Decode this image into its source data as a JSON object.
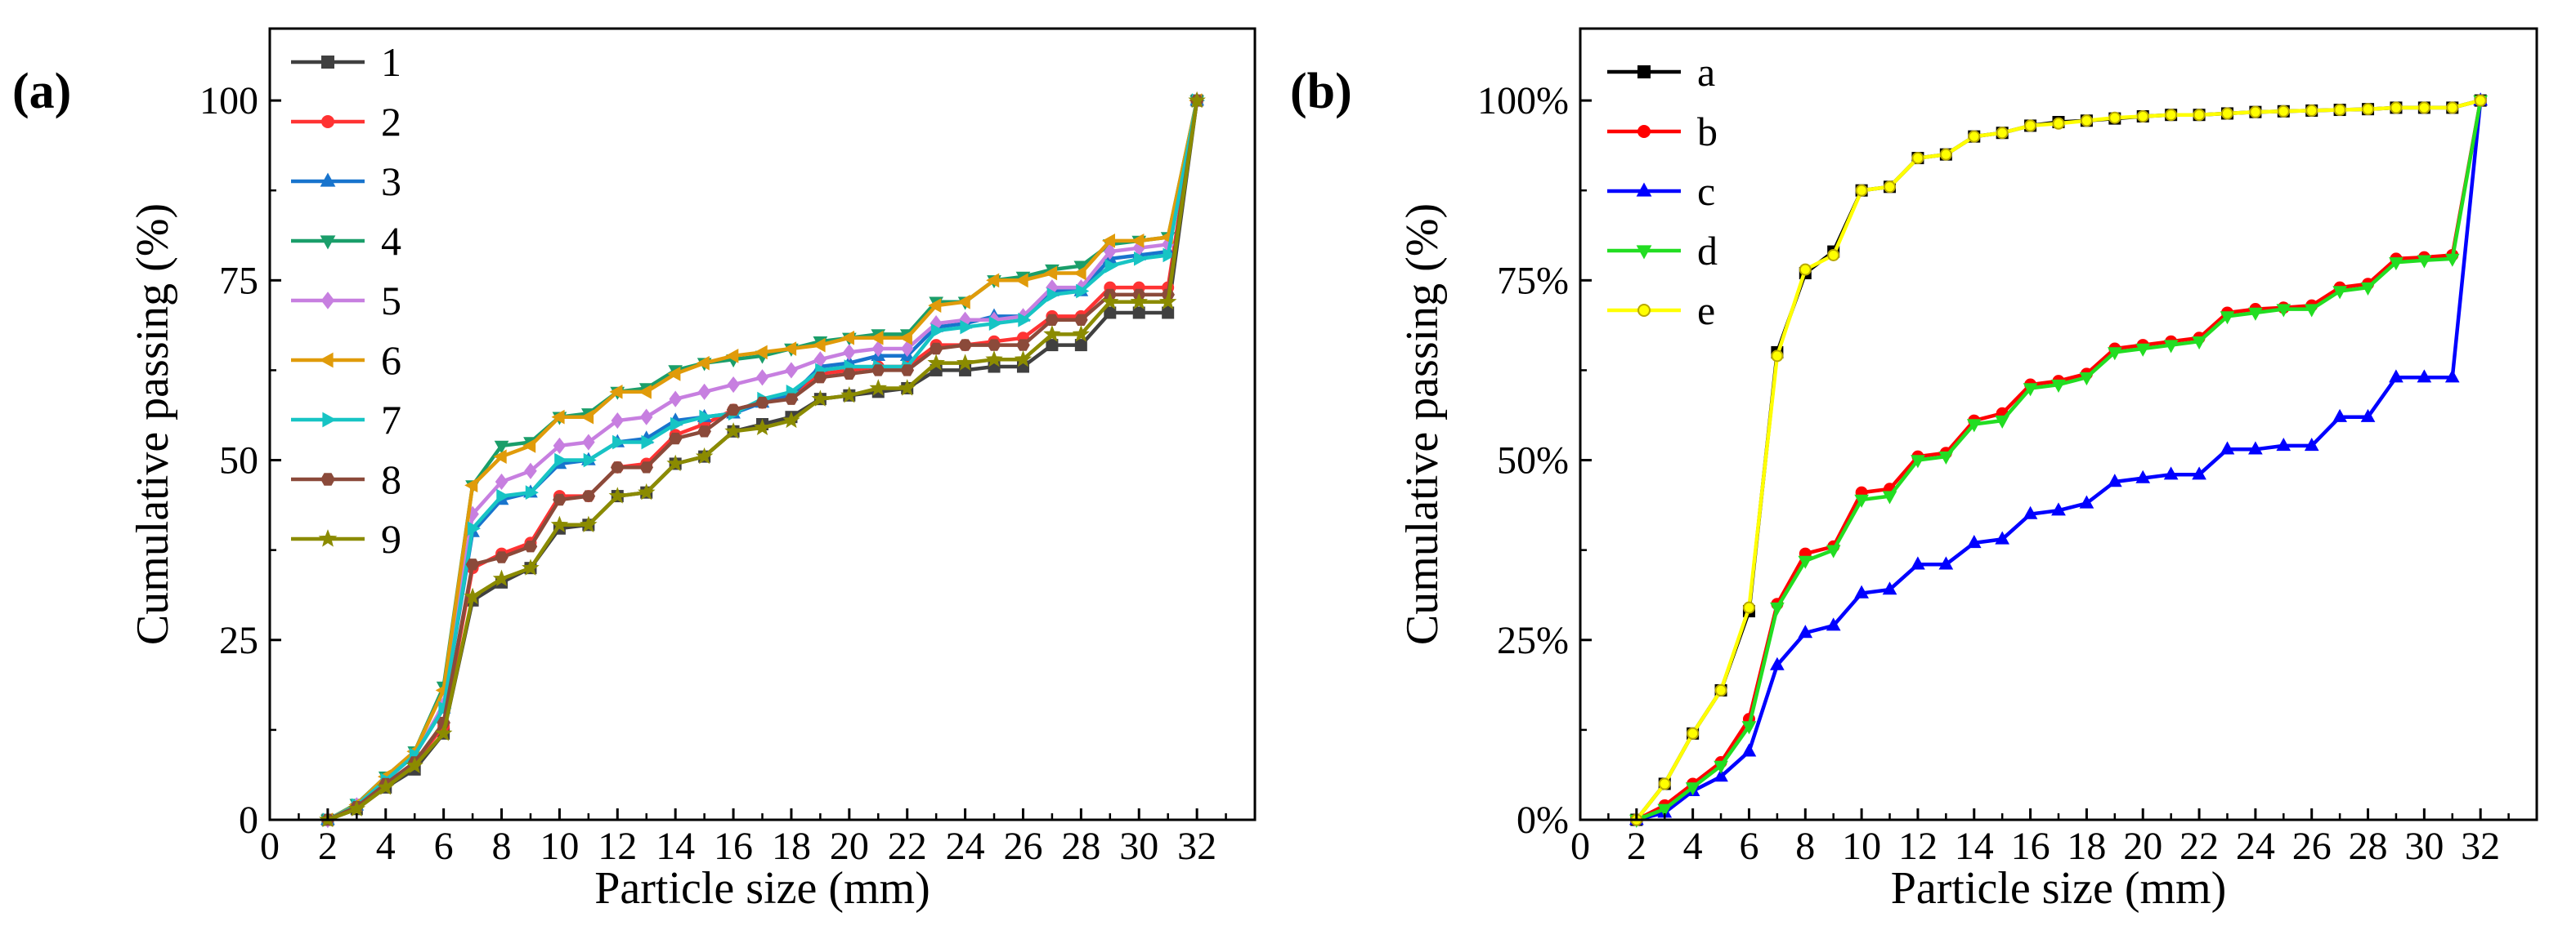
{
  "chart_data": [
    {
      "type": "line",
      "panel": "(a)",
      "xlabel": "Particle size (mm)",
      "ylabel": "Cumulative passing (%)",
      "xlim": [
        0,
        34
      ],
      "ylim": [
        0,
        110
      ],
      "x_ticks": [
        "0",
        "2",
        "4",
        "6",
        "8",
        "10",
        "12",
        "14",
        "16",
        "18",
        "20",
        "22",
        "24",
        "26",
        "28",
        "30",
        "32"
      ],
      "y_ticks": [
        "0",
        "25",
        "50",
        "75",
        "100"
      ],
      "x": [
        2,
        3,
        4,
        5,
        6,
        7,
        8,
        9,
        10,
        11,
        12,
        13,
        14,
        15,
        16,
        17,
        18,
        19,
        20,
        21,
        22,
        23,
        24,
        25,
        26,
        27,
        28,
        29,
        30,
        31,
        32
      ],
      "legend_position": "top-left",
      "series": [
        {
          "name": "1",
          "color": "#404040",
          "marker": "square",
          "values": [
            0,
            1.5,
            4.5,
            7,
            12,
            30.5,
            33,
            35,
            40.5,
            41,
            45,
            45.5,
            49.5,
            50.5,
            54,
            55,
            56,
            58.5,
            59,
            59.5,
            60,
            62.5,
            62.5,
            63,
            63,
            66,
            66,
            70.5,
            70.5,
            70.5,
            100
          ]
        },
        {
          "name": "2",
          "color": "#ff3333",
          "marker": "circle",
          "values": [
            0,
            1.8,
            5,
            8,
            13,
            35,
            37,
            38.5,
            45,
            45,
            49,
            49.5,
            53.5,
            55,
            57,
            58,
            59,
            62,
            62.5,
            63,
            63,
            66,
            66,
            66.5,
            67,
            70,
            70,
            74,
            74,
            74,
            100
          ]
        },
        {
          "name": "3",
          "color": "#1874cd",
          "marker": "triangle-up",
          "values": [
            0,
            2,
            5.5,
            9,
            15.5,
            40,
            44.5,
            45.5,
            49.5,
            50,
            52.5,
            53,
            55.5,
            56,
            56.5,
            58,
            59,
            63,
            63.5,
            64.5,
            64.5,
            68.5,
            69,
            70,
            70,
            73.5,
            73.5,
            78,
            78.5,
            79,
            100
          ]
        },
        {
          "name": "4",
          "color": "#1a9e6a",
          "marker": "triangle-down",
          "values": [
            0,
            2.2,
            6,
            9.5,
            18.5,
            46.5,
            52,
            52.5,
            56,
            56.5,
            59.5,
            60,
            62.5,
            63.5,
            64,
            64.5,
            65.5,
            66.5,
            67,
            67.5,
            67.5,
            72,
            72,
            75,
            75.5,
            76.5,
            77,
            80,
            80.5,
            81,
            100
          ]
        },
        {
          "name": "5",
          "color": "#c77fe0",
          "marker": "diamond",
          "values": [
            0,
            2,
            5.5,
            9,
            16,
            42.5,
            47,
            48.5,
            52,
            52.5,
            55.5,
            56,
            58.5,
            59.5,
            60.5,
            61.5,
            62.5,
            64,
            65,
            65.5,
            65.5,
            69,
            69.5,
            69.5,
            70,
            74,
            74,
            79,
            79.5,
            80,
            100
          ]
        },
        {
          "name": "6",
          "color": "#e09b0a",
          "marker": "triangle-left",
          "values": [
            0,
            2.1,
            6,
            9.5,
            18,
            46.5,
            50.5,
            52,
            56,
            56,
            59.5,
            59.5,
            62,
            63.5,
            64.5,
            65,
            65.5,
            66,
            67,
            67,
            67,
            71.5,
            72,
            75,
            75,
            76,
            76,
            80.5,
            80.5,
            81,
            100
          ]
        },
        {
          "name": "7",
          "color": "#17c4c4",
          "marker": "triangle-right",
          "values": [
            0,
            2,
            5.5,
            9,
            15.5,
            40.5,
            45,
            45.5,
            50,
            50,
            52.5,
            52.5,
            55,
            56,
            56.5,
            58.5,
            59.5,
            62.5,
            63,
            63,
            63,
            68,
            68.5,
            69,
            69.5,
            73,
            73.5,
            77,
            78,
            78.5,
            100
          ]
        },
        {
          "name": "8",
          "color": "#8b4a3a",
          "marker": "hexagon",
          "values": [
            0,
            1.8,
            5,
            8,
            13.5,
            35.5,
            36.5,
            38,
            44.5,
            45,
            49,
            49,
            53,
            54,
            57,
            58,
            58.5,
            61.5,
            62,
            62.5,
            62.5,
            65.5,
            66,
            66,
            66,
            69.5,
            69.5,
            73,
            73,
            73,
            100
          ]
        },
        {
          "name": "9",
          "color": "#8b8b00",
          "marker": "star",
          "values": [
            0,
            1.5,
            4.5,
            7.5,
            12,
            31,
            33.5,
            35,
            41,
            41,
            45,
            45.5,
            49.5,
            50.5,
            54,
            54.5,
            55.5,
            58.5,
            59,
            60,
            60,
            63.5,
            63.5,
            64,
            64,
            67.5,
            67.5,
            72,
            72,
            72,
            100
          ]
        }
      ]
    },
    {
      "type": "line",
      "panel": "(b)",
      "xlabel": "Particle size (mm)",
      "ylabel": "Cumulative passing (%)",
      "xlim": [
        0,
        34
      ],
      "ylim": [
        0,
        1.1
      ],
      "x_ticks": [
        "0",
        "2",
        "4",
        "6",
        "8",
        "10",
        "12",
        "14",
        "16",
        "18",
        "20",
        "22",
        "24",
        "26",
        "28",
        "30",
        "32"
      ],
      "y_ticks": [
        "0%",
        "25%",
        "50%",
        "75%",
        "100%"
      ],
      "x": [
        2,
        3,
        4,
        5,
        6,
        7,
        8,
        9,
        10,
        11,
        12,
        13,
        14,
        15,
        16,
        17,
        18,
        19,
        20,
        21,
        22,
        23,
        24,
        25,
        26,
        27,
        28,
        29,
        30,
        31,
        32
      ],
      "legend_position": "top-left",
      "series": [
        {
          "name": "a",
          "color": "#000000",
          "marker": "square",
          "values": [
            0,
            0.05,
            0.12,
            0.18,
            0.29,
            0.65,
            0.76,
            0.79,
            0.875,
            0.88,
            0.92,
            0.925,
            0.95,
            0.955,
            0.965,
            0.97,
            0.972,
            0.975,
            0.978,
            0.98,
            0.98,
            0.982,
            0.984,
            0.985,
            0.986,
            0.987,
            0.988,
            0.99,
            0.99,
            0.99,
            1.0
          ]
        },
        {
          "name": "b",
          "color": "#ff0000",
          "marker": "circle",
          "values": [
            0,
            0.02,
            0.05,
            0.08,
            0.14,
            0.3,
            0.37,
            0.38,
            0.455,
            0.46,
            0.505,
            0.51,
            0.555,
            0.565,
            0.605,
            0.61,
            0.62,
            0.655,
            0.66,
            0.665,
            0.67,
            0.705,
            0.71,
            0.712,
            0.715,
            0.74,
            0.745,
            0.78,
            0.782,
            0.785,
            1.0
          ]
        },
        {
          "name": "c",
          "color": "#0000ff",
          "marker": "triangle-up",
          "values": [
            0,
            0.01,
            0.04,
            0.06,
            0.095,
            0.215,
            0.26,
            0.27,
            0.315,
            0.32,
            0.355,
            0.355,
            0.385,
            0.39,
            0.425,
            0.43,
            0.44,
            0.47,
            0.475,
            0.48,
            0.48,
            0.515,
            0.515,
            0.52,
            0.52,
            0.56,
            0.56,
            0.615,
            0.615,
            0.615,
            1.0
          ]
        },
        {
          "name": "d",
          "color": "#22dd22",
          "marker": "triangle-down",
          "values": [
            0,
            0.015,
            0.045,
            0.075,
            0.13,
            0.295,
            0.36,
            0.375,
            0.445,
            0.45,
            0.5,
            0.505,
            0.55,
            0.555,
            0.6,
            0.605,
            0.615,
            0.65,
            0.655,
            0.66,
            0.665,
            0.7,
            0.705,
            0.71,
            0.71,
            0.735,
            0.74,
            0.775,
            0.778,
            0.78,
            1.0
          ]
        },
        {
          "name": "e",
          "color": "#ffff00",
          "marker": "circle",
          "values": [
            0,
            0.05,
            0.12,
            0.18,
            0.295,
            0.645,
            0.765,
            0.785,
            0.875,
            0.88,
            0.92,
            0.925,
            0.95,
            0.955,
            0.965,
            0.968,
            0.972,
            0.976,
            0.978,
            0.98,
            0.98,
            0.982,
            0.984,
            0.985,
            0.986,
            0.987,
            0.988,
            0.99,
            0.99,
            0.99,
            1.0
          ]
        }
      ]
    }
  ]
}
